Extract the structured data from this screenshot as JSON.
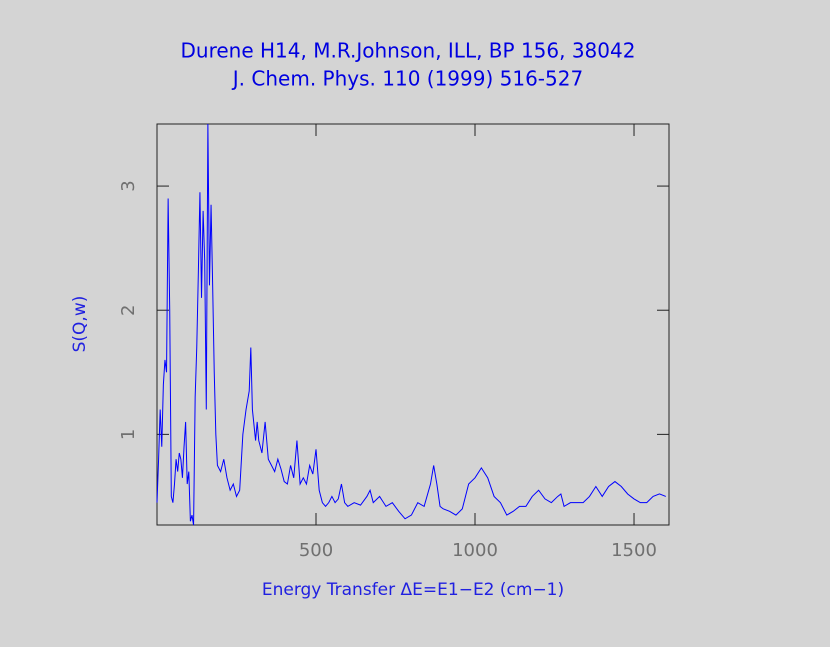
{
  "chart_data": {
    "type": "line",
    "title": "Durene H14, M.R.Johnson, ILL, BP 156, 38042",
    "subtitle": "J. Chem. Phys. 110 (1999) 516-527",
    "x_label": "Energy Transfer ΔE=E1−E2 (cm−1)",
    "y_label": "S(Q,w)",
    "xlim": [
      0,
      1610
    ],
    "ylim": [
      0.27,
      3.5
    ],
    "xticks": [
      500,
      1000,
      1500
    ],
    "yticks": [
      1,
      2,
      3
    ],
    "color": "#0000ff",
    "x": [
      0,
      5,
      10,
      15,
      20,
      25,
      30,
      35,
      40,
      45,
      50,
      55,
      60,
      65,
      70,
      75,
      80,
      85,
      90,
      95,
      100,
      105,
      110,
      115,
      120,
      125,
      130,
      135,
      140,
      145,
      150,
      155,
      160,
      165,
      170,
      175,
      180,
      185,
      190,
      200,
      210,
      220,
      230,
      240,
      250,
      260,
      270,
      280,
      290,
      295,
      300,
      310,
      315,
      320,
      330,
      340,
      350,
      360,
      370,
      380,
      390,
      400,
      410,
      420,
      430,
      440,
      450,
      460,
      470,
      480,
      490,
      500,
      510,
      520,
      530,
      540,
      550,
      560,
      570,
      580,
      590,
      600,
      620,
      640,
      660,
      670,
      680,
      700,
      720,
      740,
      760,
      780,
      800,
      820,
      840,
      860,
      870,
      880,
      890,
      900,
      920,
      940,
      960,
      980,
      1000,
      1020,
      1040,
      1060,
      1080,
      1100,
      1120,
      1140,
      1160,
      1180,
      1200,
      1220,
      1240,
      1260,
      1270,
      1280,
      1300,
      1320,
      1340,
      1360,
      1380,
      1400,
      1420,
      1440,
      1460,
      1480,
      1500,
      1520,
      1540,
      1560,
      1580,
      1600
    ],
    "values": [
      0.45,
      0.8,
      1.2,
      0.9,
      1.4,
      1.6,
      1.5,
      2.9,
      2.0,
      0.5,
      0.45,
      0.6,
      0.8,
      0.7,
      0.85,
      0.8,
      0.65,
      0.9,
      1.1,
      0.6,
      0.7,
      0.3,
      0.35,
      0.27,
      1.3,
      1.7,
      2.3,
      2.95,
      2.1,
      2.8,
      2.4,
      1.2,
      3.5,
      2.2,
      2.85,
      2.2,
      1.5,
      1.0,
      0.75,
      0.7,
      0.8,
      0.65,
      0.55,
      0.6,
      0.5,
      0.55,
      1.0,
      1.2,
      1.35,
      1.7,
      1.2,
      0.95,
      1.1,
      0.95,
      0.85,
      1.1,
      0.8,
      0.75,
      0.7,
      0.8,
      0.72,
      0.62,
      0.6,
      0.75,
      0.65,
      0.95,
      0.6,
      0.65,
      0.6,
      0.75,
      0.68,
      0.88,
      0.55,
      0.45,
      0.42,
      0.45,
      0.5,
      0.45,
      0.48,
      0.6,
      0.45,
      0.42,
      0.45,
      0.43,
      0.5,
      0.55,
      0.45,
      0.5,
      0.42,
      0.45,
      0.38,
      0.32,
      0.35,
      0.45,
      0.42,
      0.6,
      0.75,
      0.6,
      0.42,
      0.4,
      0.38,
      0.35,
      0.4,
      0.6,
      0.65,
      0.73,
      0.65,
      0.5,
      0.45,
      0.35,
      0.38,
      0.42,
      0.42,
      0.5,
      0.55,
      0.48,
      0.45,
      0.5,
      0.52,
      0.42,
      0.45,
      0.45,
      0.45,
      0.5,
      0.58,
      0.5,
      0.58,
      0.62,
      0.58,
      0.52,
      0.48,
      0.45,
      0.45,
      0.5,
      0.52,
      0.5
    ]
  }
}
